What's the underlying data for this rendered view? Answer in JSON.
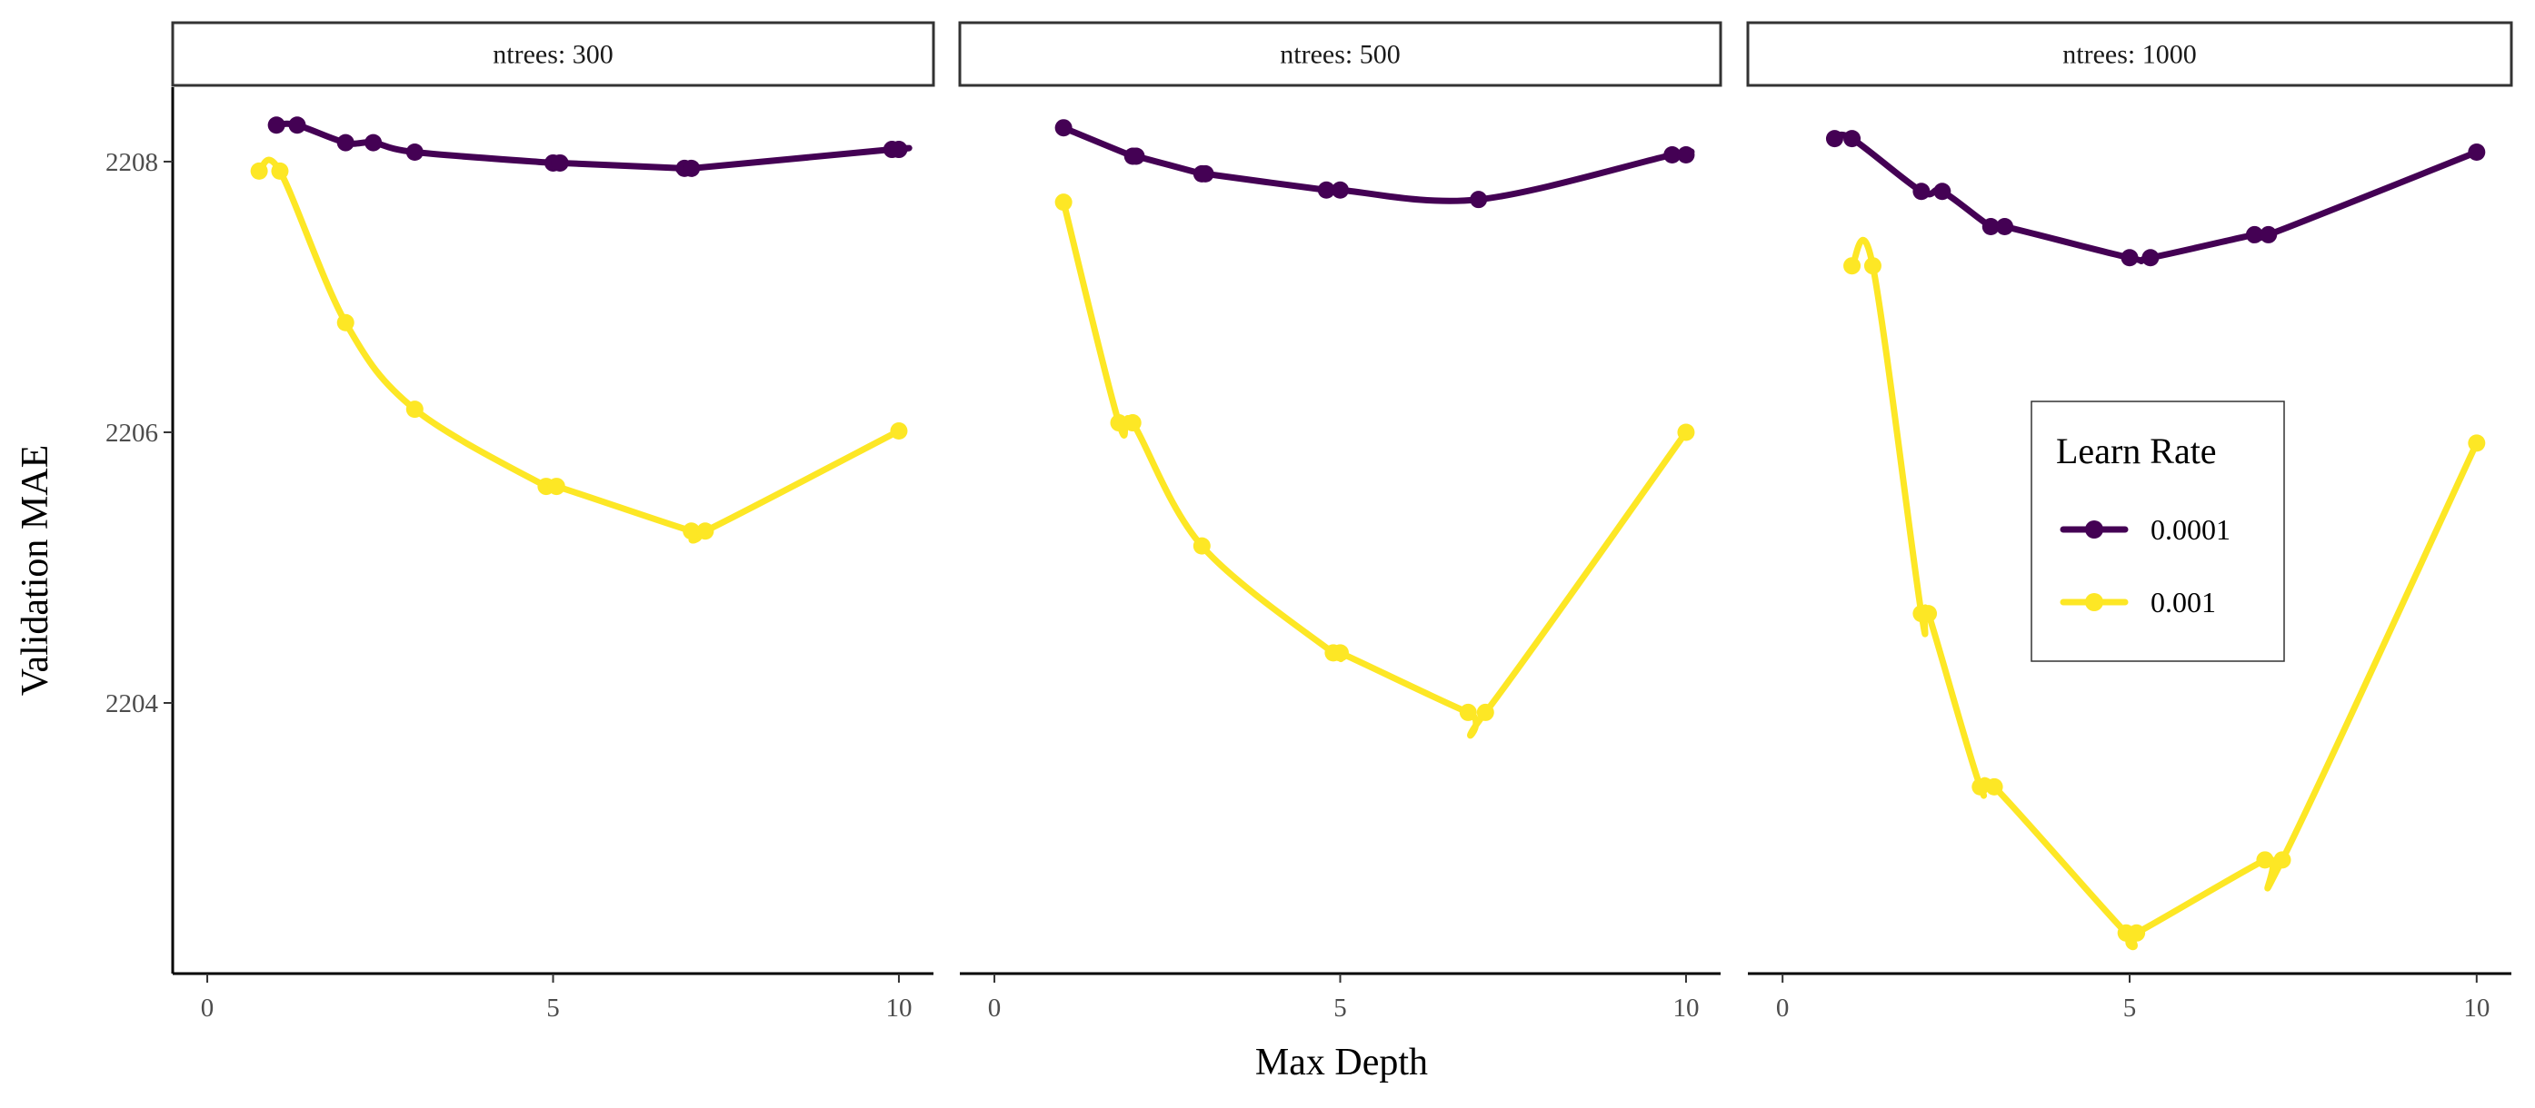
{
  "chart_data": {
    "type": "line",
    "xlabel": "Max Depth",
    "ylabel": "Validation MAE",
    "xlim": [
      -0.5,
      10.5
    ],
    "ylim": [
      2202,
      2208.55
    ],
    "x_ticks": [
      0,
      5,
      10
    ],
    "x_tick_labels": [
      "0",
      "5",
      "10"
    ],
    "y_ticks": [
      2204,
      2206,
      2208
    ],
    "y_tick_labels": [
      "2204",
      "2206",
      "2208"
    ],
    "grid": false,
    "legend": {
      "title": "Learn Rate",
      "placement": "inside-right",
      "entries": [
        {
          "label": "0.0001",
          "color": "#440154"
        },
        {
          "label": "0.001",
          "color": "#FDE725"
        }
      ]
    },
    "panels": [
      {
        "strip": "ntrees: 300",
        "series": [
          {
            "name": "0.0001",
            "color": "#440154",
            "x": [
              1.0,
              1.3,
              2.0,
              2.4,
              3.0,
              5.0,
              5.1,
              6.9,
              7.0,
              9.9,
              10.0
            ],
            "y": [
              2208.27,
              2208.27,
              2208.14,
              2208.14,
              2208.07,
              2207.99,
              2207.99,
              2207.95,
              2207.95,
              2208.09,
              2208.09
            ]
          },
          {
            "name": "0.001",
            "color": "#FDE725",
            "x": [
              0.75,
              1.05,
              2.0,
              3.0,
              4.9,
              5.05,
              7.0,
              7.2,
              10.0
            ],
            "y": [
              2207.93,
              2207.93,
              2206.81,
              2206.17,
              2205.6,
              2205.6,
              2205.27,
              2205.27,
              2206.01
            ]
          }
        ]
      },
      {
        "strip": "ntrees: 500",
        "series": [
          {
            "name": "0.0001",
            "color": "#440154",
            "x": [
              1.0,
              2.0,
              2.05,
              3.0,
              3.05,
              4.8,
              5.0,
              7.0,
              9.8,
              10.0
            ],
            "y": [
              2208.25,
              2208.04,
              2208.04,
              2207.91,
              2207.91,
              2207.79,
              2207.79,
              2207.72,
              2208.05,
              2208.05
            ]
          },
          {
            "name": "0.001",
            "color": "#FDE725",
            "x": [
              1.0,
              1.8,
              2.0,
              3.0,
              4.9,
              5.0,
              6.85,
              7.1,
              10.0
            ],
            "y": [
              2207.7,
              2206.07,
              2206.07,
              2205.16,
              2204.37,
              2204.37,
              2203.93,
              2203.93,
              2206.0
            ]
          }
        ]
      },
      {
        "strip": "ntrees: 1000",
        "series": [
          {
            "name": "0.0001",
            "color": "#440154",
            "x": [
              0.75,
              1.0,
              2.0,
              2.3,
              3.0,
              3.2,
              5.0,
              5.3,
              6.8,
              7.0,
              10.0
            ],
            "y": [
              2208.17,
              2208.17,
              2207.78,
              2207.78,
              2207.52,
              2207.52,
              2207.29,
              2207.29,
              2207.46,
              2207.46,
              2208.07
            ]
          },
          {
            "name": "0.001",
            "color": "#FDE725",
            "x": [
              1.0,
              1.3,
              2.0,
              2.1,
              2.85,
              3.05,
              4.95,
              5.1,
              6.95,
              7.2,
              10.0
            ],
            "y": [
              2207.23,
              2207.23,
              2204.66,
              2204.66,
              2203.38,
              2203.38,
              2202.3,
              2202.3,
              2202.84,
              2202.84,
              2205.92
            ]
          }
        ]
      }
    ]
  }
}
